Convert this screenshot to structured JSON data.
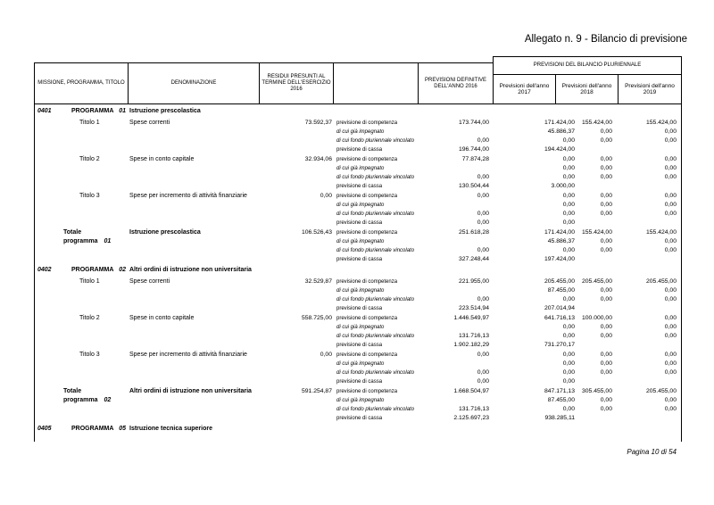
{
  "page": {
    "title": "Allegato n. 9 - Bilancio di previsione",
    "footer": "Pagina 10 di 54"
  },
  "table": {
    "headers": {
      "col_missione": "MISSIONE, PROGRAMMA, TITOLO",
      "col_denominazione": "DENOMINAZIONE",
      "col_residui": "RESIDUI PRESUNTI AL TERMINE DELL'ESERCIZIO 2016",
      "col_definitive": "PREVISIONI DEFINITIVE DELL'ANNO 2016",
      "group": "PREVISIONI DEL BILANCIO PLURIENNALE",
      "year_cols": [
        "Previsioni dell'anno 2017",
        "Previsioni dell'anno 2018",
        "Previsioni dell'anno 2019"
      ]
    },
    "row_labels": [
      "previsione di competenza",
      "di cui già impegnato",
      "di cui fondo pluriennale vincolato",
      "previsione di cassa"
    ],
    "programs": [
      {
        "code": "0401",
        "label": "PROGRAMMA",
        "num": "01",
        "name": "Istruzione prescolastica",
        "rows": [
          {
            "type": "titolo",
            "label": "Titolo 1",
            "num": "",
            "name": "Spese correnti",
            "residui": "73.592,37",
            "values": [
              [
                "173.744,00",
                "171.424,00",
                "155.424,00",
                "155.424,00"
              ],
              [
                "",
                "45.886,37",
                "0,00",
                "0,00"
              ],
              [
                "0,00",
                "0,00",
                "0,00",
                "0,00"
              ],
              [
                "196.744,00",
                "194.424,00",
                "",
                ""
              ]
            ]
          },
          {
            "type": "titolo",
            "label": "Titolo 2",
            "num": "",
            "name": "Spese in conto capitale",
            "residui": "32.934,06",
            "values": [
              [
                "77.874,28",
                "0,00",
                "0,00",
                "0,00"
              ],
              [
                "",
                "0,00",
                "0,00",
                "0,00"
              ],
              [
                "0,00",
                "0,00",
                "0,00",
                "0,00"
              ],
              [
                "130.504,44",
                "3.000,00",
                "",
                ""
              ]
            ]
          },
          {
            "type": "titolo",
            "label": "Titolo 3",
            "num": "",
            "name": "Spese per incremento di attività finanziarie",
            "residui": "0,00",
            "values": [
              [
                "0,00",
                "0,00",
                "0,00",
                "0,00"
              ],
              [
                "",
                "0,00",
                "0,00",
                "0,00"
              ],
              [
                "0,00",
                "0,00",
                "0,00",
                "0,00"
              ],
              [
                "0,00",
                "0,00",
                "",
                ""
              ]
            ]
          },
          {
            "type": "totale",
            "label": "Totale programma",
            "num": "01",
            "name": "Istruzione prescolastica",
            "residui": "106.526,43",
            "values": [
              [
                "251.618,28",
                "171.424,00",
                "155.424,00",
                "155.424,00"
              ],
              [
                "",
                "45.886,37",
                "0,00",
                "0,00"
              ],
              [
                "0,00",
                "0,00",
                "0,00",
                "0,00"
              ],
              [
                "327.248,44",
                "197.424,00",
                "",
                ""
              ]
            ]
          }
        ]
      },
      {
        "code": "0402",
        "label": "PROGRAMMA",
        "num": "02",
        "name": "Altri ordini di istruzione non universitaria",
        "rows": [
          {
            "type": "titolo",
            "label": "Titolo 1",
            "num": "",
            "name": "Spese correnti",
            "residui": "32.529,87",
            "values": [
              [
                "221.955,00",
                "205.455,00",
                "205.455,00",
                "205.455,00"
              ],
              [
                "",
                "87.455,00",
                "0,00",
                "0,00"
              ],
              [
                "0,00",
                "0,00",
                "0,00",
                "0,00"
              ],
              [
                "223.514,94",
                "207.014,94",
                "",
                ""
              ]
            ]
          },
          {
            "type": "titolo",
            "label": "Titolo 2",
            "num": "",
            "name": "Spese in conto capitale",
            "residui": "558.725,00",
            "values": [
              [
                "1.446.549,97",
                "641.716,13",
                "100.000,00",
                "0,00"
              ],
              [
                "",
                "0,00",
                "0,00",
                "0,00"
              ],
              [
                "131.716,13",
                "0,00",
                "0,00",
                "0,00"
              ],
              [
                "1.902.182,29",
                "731.270,17",
                "",
                ""
              ]
            ]
          },
          {
            "type": "titolo",
            "label": "Titolo 3",
            "num": "",
            "name": "Spese per incremento di attività finanziarie",
            "residui": "0,00",
            "values": [
              [
                "0,00",
                "0,00",
                "0,00",
                "0,00"
              ],
              [
                "",
                "0,00",
                "0,00",
                "0,00"
              ],
              [
                "0,00",
                "0,00",
                "0,00",
                "0,00"
              ],
              [
                "0,00",
                "0,00",
                "",
                ""
              ]
            ]
          },
          {
            "type": "totale",
            "label": "Totale programma",
            "num": "02",
            "name": "Altri ordini di istruzione non universitaria",
            "residui": "591.254,87",
            "values": [
              [
                "1.668.504,97",
                "847.171,13",
                "305.455,00",
                "205.455,00"
              ],
              [
                "",
                "87.455,00",
                "0,00",
                "0,00"
              ],
              [
                "131.716,13",
                "0,00",
                "0,00",
                "0,00"
              ],
              [
                "2.125.697,23",
                "938.285,11",
                "",
                ""
              ]
            ]
          }
        ]
      },
      {
        "code": "0405",
        "label": "PROGRAMMA",
        "num": "05",
        "name": "Istruzione tecnica superiore",
        "rows": []
      }
    ]
  }
}
